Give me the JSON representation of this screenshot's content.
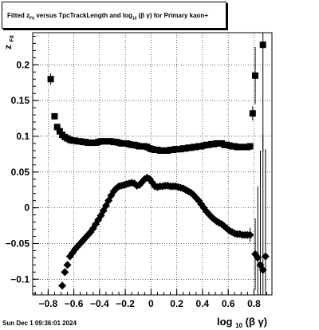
{
  "chart_data": {
    "type": "scatter",
    "title": {
      "pre": "Fitted",
      "z": "z",
      "z_sub": "Fit",
      "mid": "versus TpcTrackLength and log",
      "log_sub": "10",
      "tail": "(β γ) for Primary kaon+"
    },
    "ylabel": {
      "main": "z",
      "sub": "Fit"
    },
    "xlabel": {
      "pre": "log",
      "sub": "10",
      "post": "(β γ)"
    },
    "xlim": [
      -0.92,
      0.94
    ],
    "ylim": [
      -0.122,
      0.245
    ],
    "grid": true,
    "xticks": [
      -0.8,
      -0.6,
      -0.4,
      -0.2,
      0,
      0.2,
      0.4,
      0.6,
      0.8
    ],
    "xtick_labels": [
      "−0.8",
      "−0.6",
      "−0.4",
      "−0.2",
      "0",
      "0.2",
      "0.4",
      "0.6",
      "0.8"
    ],
    "yticks": [
      -0.1,
      -0.05,
      0,
      0.05,
      0.1,
      0.15,
      0.2
    ],
    "ytick_labels": [
      "−0.1",
      "−0.05",
      "0",
      "0.05",
      "0.1",
      "0.15",
      "0.2"
    ],
    "series": [
      {
        "marker": "square",
        "points": [
          [
            -0.78,
            0.18,
            0.008
          ],
          [
            -0.75,
            0.128,
            0.004
          ],
          [
            -0.73,
            0.113,
            0.002
          ],
          [
            -0.71,
            0.107,
            0.002
          ],
          [
            -0.69,
            0.102,
            0.001
          ],
          [
            -0.67,
            0.099,
            0.001
          ],
          [
            -0.65,
            0.097,
            0
          ],
          [
            -0.63,
            0.095,
            0
          ],
          [
            -0.61,
            0.094,
            0
          ],
          [
            -0.59,
            0.094,
            0
          ],
          [
            -0.57,
            0.093,
            0
          ],
          [
            -0.55,
            0.093,
            0
          ],
          [
            -0.53,
            0.092,
            0
          ],
          [
            -0.51,
            0.092,
            0
          ],
          [
            -0.49,
            0.091,
            0
          ],
          [
            -0.47,
            0.091,
            0
          ],
          [
            -0.45,
            0.091,
            0
          ],
          [
            -0.43,
            0.091,
            0
          ],
          [
            -0.41,
            0.092,
            0
          ],
          [
            -0.39,
            0.093,
            0
          ],
          [
            -0.37,
            0.093,
            0
          ],
          [
            -0.35,
            0.093,
            0
          ],
          [
            -0.33,
            0.093,
            0
          ],
          [
            -0.31,
            0.093,
            0
          ],
          [
            -0.29,
            0.092,
            0
          ],
          [
            -0.27,
            0.092,
            0
          ],
          [
            -0.25,
            0.091,
            0
          ],
          [
            -0.23,
            0.09,
            0
          ],
          [
            -0.21,
            0.09,
            0
          ],
          [
            -0.19,
            0.09,
            0
          ],
          [
            -0.17,
            0.089,
            0
          ],
          [
            -0.15,
            0.088,
            0
          ],
          [
            -0.13,
            0.088,
            0
          ],
          [
            -0.11,
            0.087,
            0
          ],
          [
            -0.09,
            0.086,
            0
          ],
          [
            -0.07,
            0.086,
            0
          ],
          [
            -0.05,
            0.086,
            0
          ],
          [
            -0.03,
            0.085,
            0
          ],
          [
            -0.01,
            0.083,
            0
          ],
          [
            0.01,
            0.082,
            0
          ],
          [
            0.03,
            0.081,
            0
          ],
          [
            0.05,
            0.081,
            0
          ],
          [
            0.07,
            0.08,
            0
          ],
          [
            0.09,
            0.08,
            0
          ],
          [
            0.11,
            0.08,
            0
          ],
          [
            0.13,
            0.08,
            0
          ],
          [
            0.15,
            0.081,
            0
          ],
          [
            0.17,
            0.081,
            0
          ],
          [
            0.19,
            0.082,
            0
          ],
          [
            0.21,
            0.082,
            0
          ],
          [
            0.23,
            0.082,
            0
          ],
          [
            0.25,
            0.083,
            0
          ],
          [
            0.27,
            0.083,
            0
          ],
          [
            0.29,
            0.084,
            0
          ],
          [
            0.31,
            0.084,
            0
          ],
          [
            0.33,
            0.085,
            0
          ],
          [
            0.35,
            0.085,
            0
          ],
          [
            0.37,
            0.086,
            0
          ],
          [
            0.39,
            0.086,
            0
          ],
          [
            0.41,
            0.087,
            0
          ],
          [
            0.43,
            0.088,
            0
          ],
          [
            0.45,
            0.088,
            0
          ],
          [
            0.47,
            0.089,
            0
          ],
          [
            0.49,
            0.089,
            0
          ],
          [
            0.51,
            0.09,
            0
          ],
          [
            0.53,
            0.09,
            0
          ],
          [
            0.55,
            0.09,
            0
          ],
          [
            0.57,
            0.088,
            0
          ],
          [
            0.59,
            0.088,
            0
          ],
          [
            0.61,
            0.087,
            0
          ],
          [
            0.63,
            0.086,
            0
          ],
          [
            0.65,
            0.086,
            0
          ],
          [
            0.67,
            0.085,
            0
          ],
          [
            0.69,
            0.085,
            0
          ],
          [
            0.71,
            0.085,
            0
          ],
          [
            0.73,
            0.085,
            0
          ],
          [
            0.75,
            0.085,
            0
          ],
          [
            0.77,
            0.086,
            0.002
          ],
          [
            0.79,
            0.132,
            0.01
          ],
          [
            0.81,
            0.185,
            0.04
          ],
          [
            0.87,
            0.228,
            0.15
          ]
        ]
      },
      {
        "marker": "diamond",
        "points": [
          [
            -0.69,
            -0.109,
            0.003
          ],
          [
            -0.67,
            -0.09,
            0.003
          ],
          [
            -0.65,
            -0.08,
            0.002
          ],
          [
            -0.63,
            -0.068,
            0.002
          ],
          [
            -0.61,
            -0.063,
            0.001
          ],
          [
            -0.59,
            -0.058,
            0.001
          ],
          [
            -0.57,
            -0.054,
            0.001
          ],
          [
            -0.55,
            -0.05,
            0
          ],
          [
            -0.53,
            -0.046,
            0
          ],
          [
            -0.51,
            -0.042,
            0
          ],
          [
            -0.49,
            -0.038,
            0
          ],
          [
            -0.47,
            -0.034,
            0
          ],
          [
            -0.45,
            -0.029,
            0
          ],
          [
            -0.43,
            -0.023,
            0
          ],
          [
            -0.41,
            -0.017,
            0
          ],
          [
            -0.39,
            -0.011,
            0
          ],
          [
            -0.37,
            -0.004,
            0
          ],
          [
            -0.35,
            0.003,
            0
          ],
          [
            -0.33,
            0.01,
            0
          ],
          [
            -0.31,
            0.017,
            0
          ],
          [
            -0.29,
            0.023,
            0
          ],
          [
            -0.27,
            0.027,
            0
          ],
          [
            -0.25,
            0.03,
            0
          ],
          [
            -0.23,
            0.031,
            0
          ],
          [
            -0.21,
            0.032,
            0
          ],
          [
            -0.19,
            0.033,
            0
          ],
          [
            -0.17,
            0.034,
            0
          ],
          [
            -0.15,
            0.035,
            0
          ],
          [
            -0.13,
            0.034,
            0
          ],
          [
            -0.11,
            0.031,
            0
          ],
          [
            -0.09,
            0.032,
            0
          ],
          [
            -0.07,
            0.036,
            0
          ],
          [
            -0.05,
            0.04,
            0
          ],
          [
            -0.03,
            0.042,
            0
          ],
          [
            -0.01,
            0.04,
            0
          ],
          [
            0.01,
            0.035,
            0
          ],
          [
            0.03,
            0.03,
            0
          ],
          [
            0.05,
            0.029,
            0
          ],
          [
            0.07,
            0.03,
            0
          ],
          [
            0.09,
            0.03,
            0
          ],
          [
            0.11,
            0.031,
            0
          ],
          [
            0.13,
            0.031,
            0
          ],
          [
            0.15,
            0.03,
            0
          ],
          [
            0.17,
            0.03,
            0
          ],
          [
            0.19,
            0.03,
            0
          ],
          [
            0.21,
            0.029,
            0
          ],
          [
            0.23,
            0.028,
            0
          ],
          [
            0.25,
            0.027,
            0
          ],
          [
            0.27,
            0.025,
            0
          ],
          [
            0.29,
            0.023,
            0
          ],
          [
            0.31,
            0.021,
            0
          ],
          [
            0.33,
            0.018,
            0
          ],
          [
            0.35,
            0.014,
            0
          ],
          [
            0.37,
            0.01,
            0
          ],
          [
            0.39,
            0.005,
            0
          ],
          [
            0.41,
            0,
            0
          ],
          [
            0.43,
            -0.005,
            0
          ],
          [
            0.45,
            -0.009,
            0
          ],
          [
            0.47,
            -0.013,
            0
          ],
          [
            0.49,
            -0.016,
            0
          ],
          [
            0.51,
            -0.019,
            0
          ],
          [
            0.53,
            -0.021,
            0
          ],
          [
            0.55,
            -0.023,
            0
          ],
          [
            0.57,
            -0.026,
            0
          ],
          [
            0.59,
            -0.029,
            0
          ],
          [
            0.61,
            -0.032,
            0
          ],
          [
            0.63,
            -0.034,
            0
          ],
          [
            0.65,
            -0.036,
            0
          ],
          [
            0.67,
            -0.037,
            0
          ],
          [
            0.69,
            -0.037,
            0
          ],
          [
            0.71,
            -0.038,
            0
          ],
          [
            0.73,
            -0.038,
            0
          ],
          [
            0.75,
            -0.038,
            0.003
          ],
          [
            0.77,
            -0.038,
            0.01
          ],
          [
            0.81,
            -0.065,
            0.05
          ],
          [
            0.83,
            -0.07,
            0.1
          ],
          [
            0.85,
            -0.08,
            0.16
          ],
          [
            0.87,
            -0.087,
            0.19
          ],
          [
            0.89,
            -0.068,
            0.15
          ]
        ]
      }
    ]
  },
  "footer": {
    "datestamp": "Sun Dec  1 09:36:01 2024"
  }
}
